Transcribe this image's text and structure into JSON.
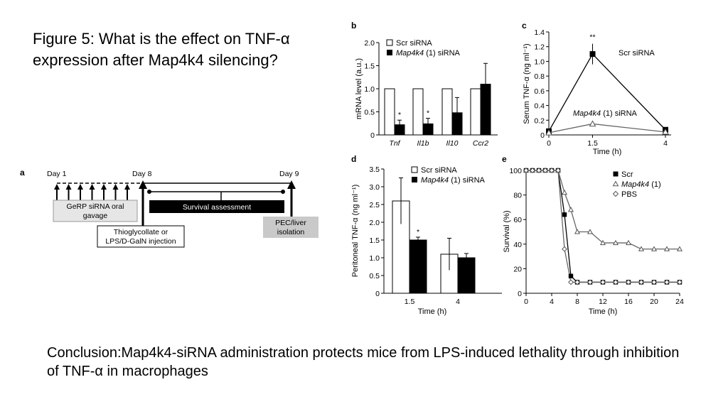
{
  "slide": {
    "title": "Figure 5: What is the effect on TNF-α expression after Map4k4 silencing?",
    "conclusion": "Conclusion:Map4k4-siRNA administration protects mice from LPS-induced lethality through inhibition of TNF-α in macrophages"
  },
  "panel_a": {
    "label": "a",
    "day1": "Day 1",
    "day8": "Day 8",
    "day9": "Day 9",
    "box_gerp": [
      "GeRP siRNA oral",
      "gavage"
    ],
    "box_injection": [
      "Thioglycollate or",
      "LPS/D-GalN injection"
    ],
    "box_survival": "Survival assessment",
    "box_pec": [
      "PEC/liver",
      "isolation"
    ]
  },
  "chart_data": [
    {
      "id": "b",
      "type": "bar",
      "panel_label": "b",
      "categories": [
        "Tnf",
        "Il1b",
        "Il10",
        "Ccr2"
      ],
      "series": [
        {
          "name": "Scr siRNA",
          "values": [
            1.0,
            1.0,
            1.0,
            1.0
          ],
          "errors": [
            0,
            0,
            0,
            0
          ],
          "color": "#ffffff"
        },
        {
          "name": "Map4k4 (1) siRNA",
          "name_italic_part": "Map4k4",
          "name_rest": " (1) siRNA",
          "values": [
            0.22,
            0.24,
            0.48,
            1.1
          ],
          "errors": [
            0.1,
            0.12,
            0.33,
            0.45
          ],
          "color": "#000000"
        }
      ],
      "annotations": [
        {
          "category": 0,
          "text": "*"
        },
        {
          "category": 1,
          "text": "*"
        }
      ],
      "ylabel": "mRNA level (a.u.)",
      "ylim": [
        0,
        2.0
      ],
      "yticks": [
        "0",
        "0.5",
        "1.0",
        "1.5",
        "2.0"
      ],
      "ytick_values": [
        0,
        0.5,
        1.0,
        1.5,
        2.0
      ]
    },
    {
      "id": "c",
      "type": "line",
      "panel_label": "c",
      "x_ticks": [
        "0",
        "1.5",
        "4"
      ],
      "x_values": [
        0,
        1.5,
        4
      ],
      "series": [
        {
          "name": "Scr siRNA",
          "y": [
            0.05,
            1.1,
            0.07
          ],
          "errors": [
            0,
            0.14,
            0
          ],
          "marker": "filled-square"
        },
        {
          "name": "Map4k4 (1) siRNA",
          "name_italic_part": "Map4k4",
          "name_rest": " (1) siRNA",
          "y": [
            0.03,
            0.15,
            0.04
          ],
          "errors": [
            0,
            0.02,
            0
          ],
          "marker": "open-triangle"
        }
      ],
      "annotation": "**",
      "xlabel": "Time (h)",
      "ylabel": "Serum TNF-α (ng ml⁻¹)",
      "ylim": [
        0,
        1.4
      ],
      "yticks": [
        "0",
        "0.2",
        "0.4",
        "0.6",
        "0.8",
        "1.0",
        "1.2",
        "1.4"
      ],
      "ytick_values": [
        0,
        0.2,
        0.4,
        0.6,
        0.8,
        1.0,
        1.2,
        1.4
      ]
    },
    {
      "id": "d",
      "type": "bar",
      "panel_label": "d",
      "categories": [
        "1.5",
        "4"
      ],
      "series": [
        {
          "name": "Scr siRNA",
          "values": [
            2.6,
            1.1
          ],
          "errors": [
            0.65,
            0.45
          ],
          "color": "#ffffff"
        },
        {
          "name": "Map4k4 (1) siRNA",
          "name_italic_part": "Map4k4",
          "name_rest": " (1) siRNA",
          "values": [
            1.5,
            1.0
          ],
          "errors": [
            0.08,
            0.12
          ],
          "color": "#000000"
        }
      ],
      "annotations": [
        {
          "category": 0,
          "text": "*"
        }
      ],
      "xlabel": "Time (h)",
      "ylabel": "Peritoneal TNF-α (ng ml⁻¹)",
      "ylim": [
        0,
        3.5
      ],
      "yticks": [
        "0",
        "0.5",
        "1.0",
        "1.5",
        "2.0",
        "2.5",
        "3.0",
        "3.5"
      ],
      "ytick_values": [
        0,
        0.5,
        1.0,
        1.5,
        2.0,
        2.5,
        3.0,
        3.5
      ]
    },
    {
      "id": "e",
      "type": "line",
      "panel_label": "e",
      "xlabel": "Time (h)",
      "ylabel": "Survival (%)",
      "xlim": [
        0,
        24
      ],
      "ylim": [
        0,
        100
      ],
      "xticks": [
        "0",
        "4",
        "8",
        "12",
        "16",
        "20",
        "24"
      ],
      "xtick_values": [
        0,
        4,
        8,
        12,
        16,
        20,
        24
      ],
      "yticks": [
        "0",
        "20",
        "40",
        "60",
        "80",
        "100"
      ],
      "ytick_values": [
        0,
        20,
        40,
        60,
        80,
        100
      ],
      "series": [
        {
          "name": "Scr",
          "marker": "filled-square",
          "x": [
            0,
            1,
            2,
            3,
            4,
            5,
            6,
            7,
            8,
            10,
            12,
            14,
            16,
            18,
            20,
            22,
            24
          ],
          "y": [
            100,
            100,
            100,
            100,
            100,
            100,
            64,
            14,
            9,
            9,
            9,
            9,
            9,
            9,
            9,
            9,
            9
          ]
        },
        {
          "name": "Map4k4 (1)",
          "name_italic_part": "Map4k4",
          "name_rest": " (1)",
          "marker": "open-triangle",
          "x": [
            0,
            1,
            2,
            3,
            4,
            5,
            6,
            7,
            8,
            10,
            12,
            14,
            16,
            18,
            20,
            22,
            24
          ],
          "y": [
            100,
            100,
            100,
            100,
            100,
            100,
            82,
            68,
            50,
            50,
            41,
            41,
            41,
            36,
            36,
            36,
            36
          ]
        },
        {
          "name": "PBS",
          "marker": "open-diamond",
          "x": [
            0,
            1,
            2,
            3,
            4,
            5,
            6,
            7,
            8,
            10,
            12,
            14,
            16,
            18,
            20,
            22,
            24
          ],
          "y": [
            100,
            100,
            100,
            100,
            100,
            100,
            36,
            9,
            9,
            9,
            9,
            9,
            9,
            9,
            9,
            9,
            9
          ]
        }
      ]
    }
  ]
}
